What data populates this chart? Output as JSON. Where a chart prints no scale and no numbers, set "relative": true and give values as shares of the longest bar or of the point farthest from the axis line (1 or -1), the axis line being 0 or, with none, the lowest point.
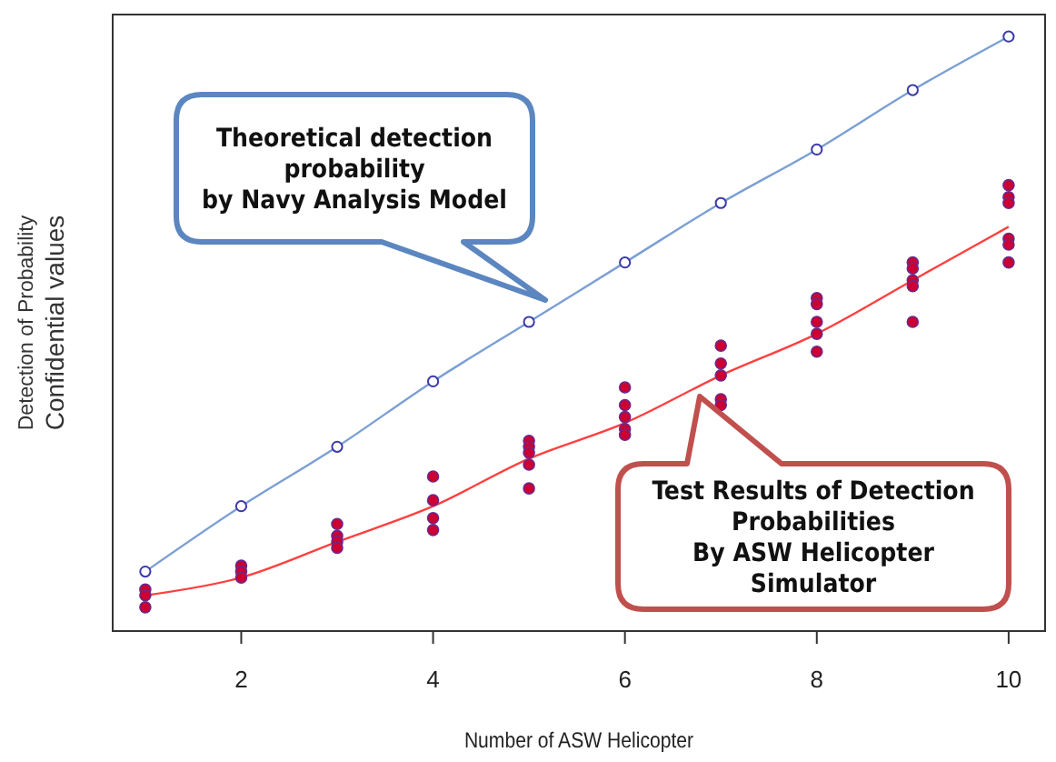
{
  "chart_data": {
    "type": "scatter",
    "relative": true,
    "xlabel": "Number of ASW Helicopter",
    "ylabel": "Detection of Probability\nConfidential values",
    "xlim": [
      0.66,
      10.38
    ],
    "xticks": [
      2,
      4,
      6,
      8,
      10
    ],
    "tick_labels": "x",
    "grid": false,
    "series": [
      {
        "type": "line",
        "color": "#7b9fd4",
        "marker": "circle",
        "x": [
          1,
          2,
          3,
          4,
          5,
          6,
          7,
          8,
          9,
          10
        ],
        "values": [
          0.1,
          0.21,
          0.31,
          0.42,
          0.52,
          0.62,
          0.72,
          0.81,
          0.91,
          1
        ]
      },
      {
        "type": "line",
        "color": "#ff4040",
        "marker": "none",
        "x": [
          1,
          2,
          3,
          4,
          5,
          6,
          7,
          8,
          9,
          10
        ],
        "values": [
          0.06,
          0.09,
          0.15,
          0.21,
          0.29,
          0.35,
          0.43,
          0.5,
          0.59,
          0.68
        ]
      },
      {
        "color": "#cc0033",
        "marker": "circle",
        "x": [
          1,
          1,
          1,
          2,
          2,
          2,
          3,
          3,
          3,
          3,
          4,
          4,
          4,
          4,
          5,
          5,
          5,
          5,
          5,
          6,
          6,
          6,
          6,
          6,
          7,
          7,
          7,
          7,
          7,
          8,
          8,
          8,
          8,
          8,
          9,
          9,
          9,
          9,
          9,
          10,
          10,
          10,
          10,
          10,
          10
        ],
        "values": [
          0.07,
          0.06,
          0.04,
          0.11,
          0.1,
          0.09,
          0.18,
          0.16,
          0.15,
          0.14,
          0.26,
          0.22,
          0.19,
          0.17,
          0.32,
          0.31,
          0.3,
          0.28,
          0.24,
          0.41,
          0.38,
          0.36,
          0.34,
          0.33,
          0.48,
          0.45,
          0.43,
          0.39,
          0.38,
          0.56,
          0.55,
          0.52,
          0.5,
          0.47,
          0.62,
          0.61,
          0.59,
          0.58,
          0.52,
          0.75,
          0.73,
          0.72,
          0.66,
          0.65,
          0.62
        ]
      }
    ],
    "annotations": [
      "Theoretical detection\nprobability\nby Navy Analysis Model",
      "Test Results of Detection\nProbabilities\nBy ASW Helicopter\nSimulator"
    ]
  }
}
